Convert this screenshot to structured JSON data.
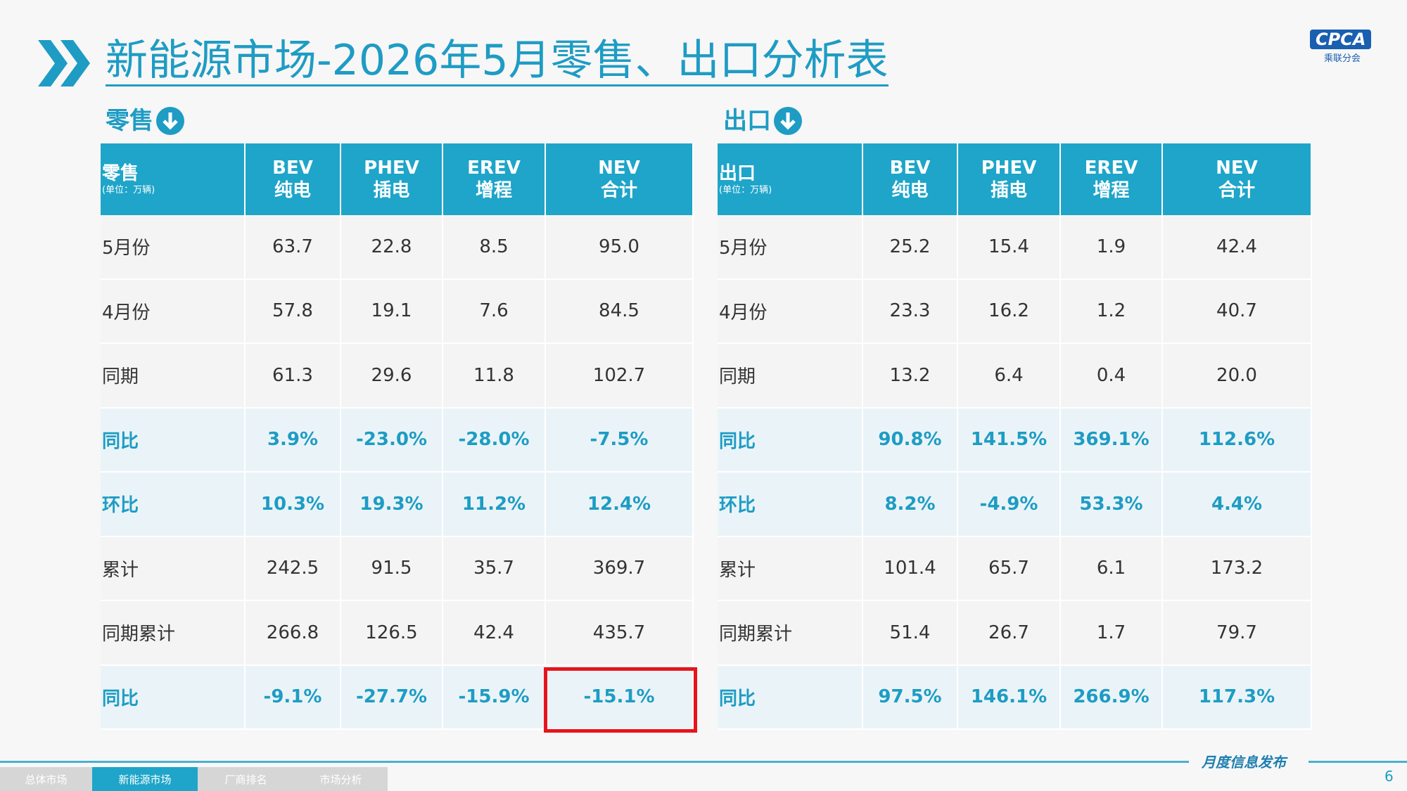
{
  "header": {
    "title": "新能源市场-2026年5月零售、出口分析表",
    "logo": "CPCA",
    "logo_sub": "乘联分会"
  },
  "tables": [
    {
      "section": "零售",
      "columns": [
        [
          "零售",
          "(单位：万辆)"
        ],
        [
          "BEV",
          "纯电"
        ],
        [
          "PHEV",
          "插电"
        ],
        [
          "EREV",
          "增程"
        ],
        [
          "NEV",
          "合计"
        ]
      ],
      "rows": [
        [
          "5月份",
          "63.7",
          "22.8",
          "8.5",
          "95.0"
        ],
        [
          "4月份",
          "57.8",
          "19.1",
          "7.6",
          "84.5"
        ],
        [
          "同期",
          "61.3",
          "29.6",
          "11.8",
          "102.7"
        ],
        [
          "同比",
          "3.9%",
          "-23.0%",
          "-28.0%",
          "-7.5%"
        ],
        [
          "环比",
          "10.3%",
          "19.3%",
          "11.2%",
          "12.4%"
        ],
        [
          "累计",
          "242.5",
          "91.5",
          "35.7",
          "369.7"
        ],
        [
          "同期累计",
          "266.8",
          "126.5",
          "42.4",
          "435.7"
        ],
        [
          "同比",
          "-9.1%",
          "-27.7%",
          "-15.9%",
          "-15.1%"
        ]
      ]
    },
    {
      "section": "出口",
      "columns": [
        [
          "出口",
          "(单位：万辆)"
        ],
        [
          "BEV",
          "纯电"
        ],
        [
          "PHEV",
          "插电"
        ],
        [
          "EREV",
          "增程"
        ],
        [
          "NEV",
          "合计"
        ]
      ],
      "rows": [
        [
          "5月份",
          "25.2",
          "15.4",
          "1.9",
          "42.4"
        ],
        [
          "4月份",
          "23.3",
          "16.2",
          "1.2",
          "40.7"
        ],
        [
          "同期",
          "13.2",
          "6.4",
          "0.4",
          "20.0"
        ],
        [
          "同比",
          "90.8%",
          "141.5%",
          "369.1%",
          "112.6%"
        ],
        [
          "环比",
          "8.2%",
          "-4.9%",
          "53.3%",
          "4.4%"
        ],
        [
          "累计",
          "101.4",
          "65.7",
          "6.1",
          "173.2"
        ],
        [
          "同期累计",
          "51.4",
          "26.7",
          "1.7",
          "79.7"
        ],
        [
          "同比",
          "97.5%",
          "146.1%",
          "266.9%",
          "117.3%"
        ]
      ]
    }
  ],
  "footer": {
    "tabs": [
      "总体市场",
      "新能源市场",
      "厂商排名",
      "市场分析"
    ],
    "slogan": "月度信息发布",
    "page": "6"
  }
}
